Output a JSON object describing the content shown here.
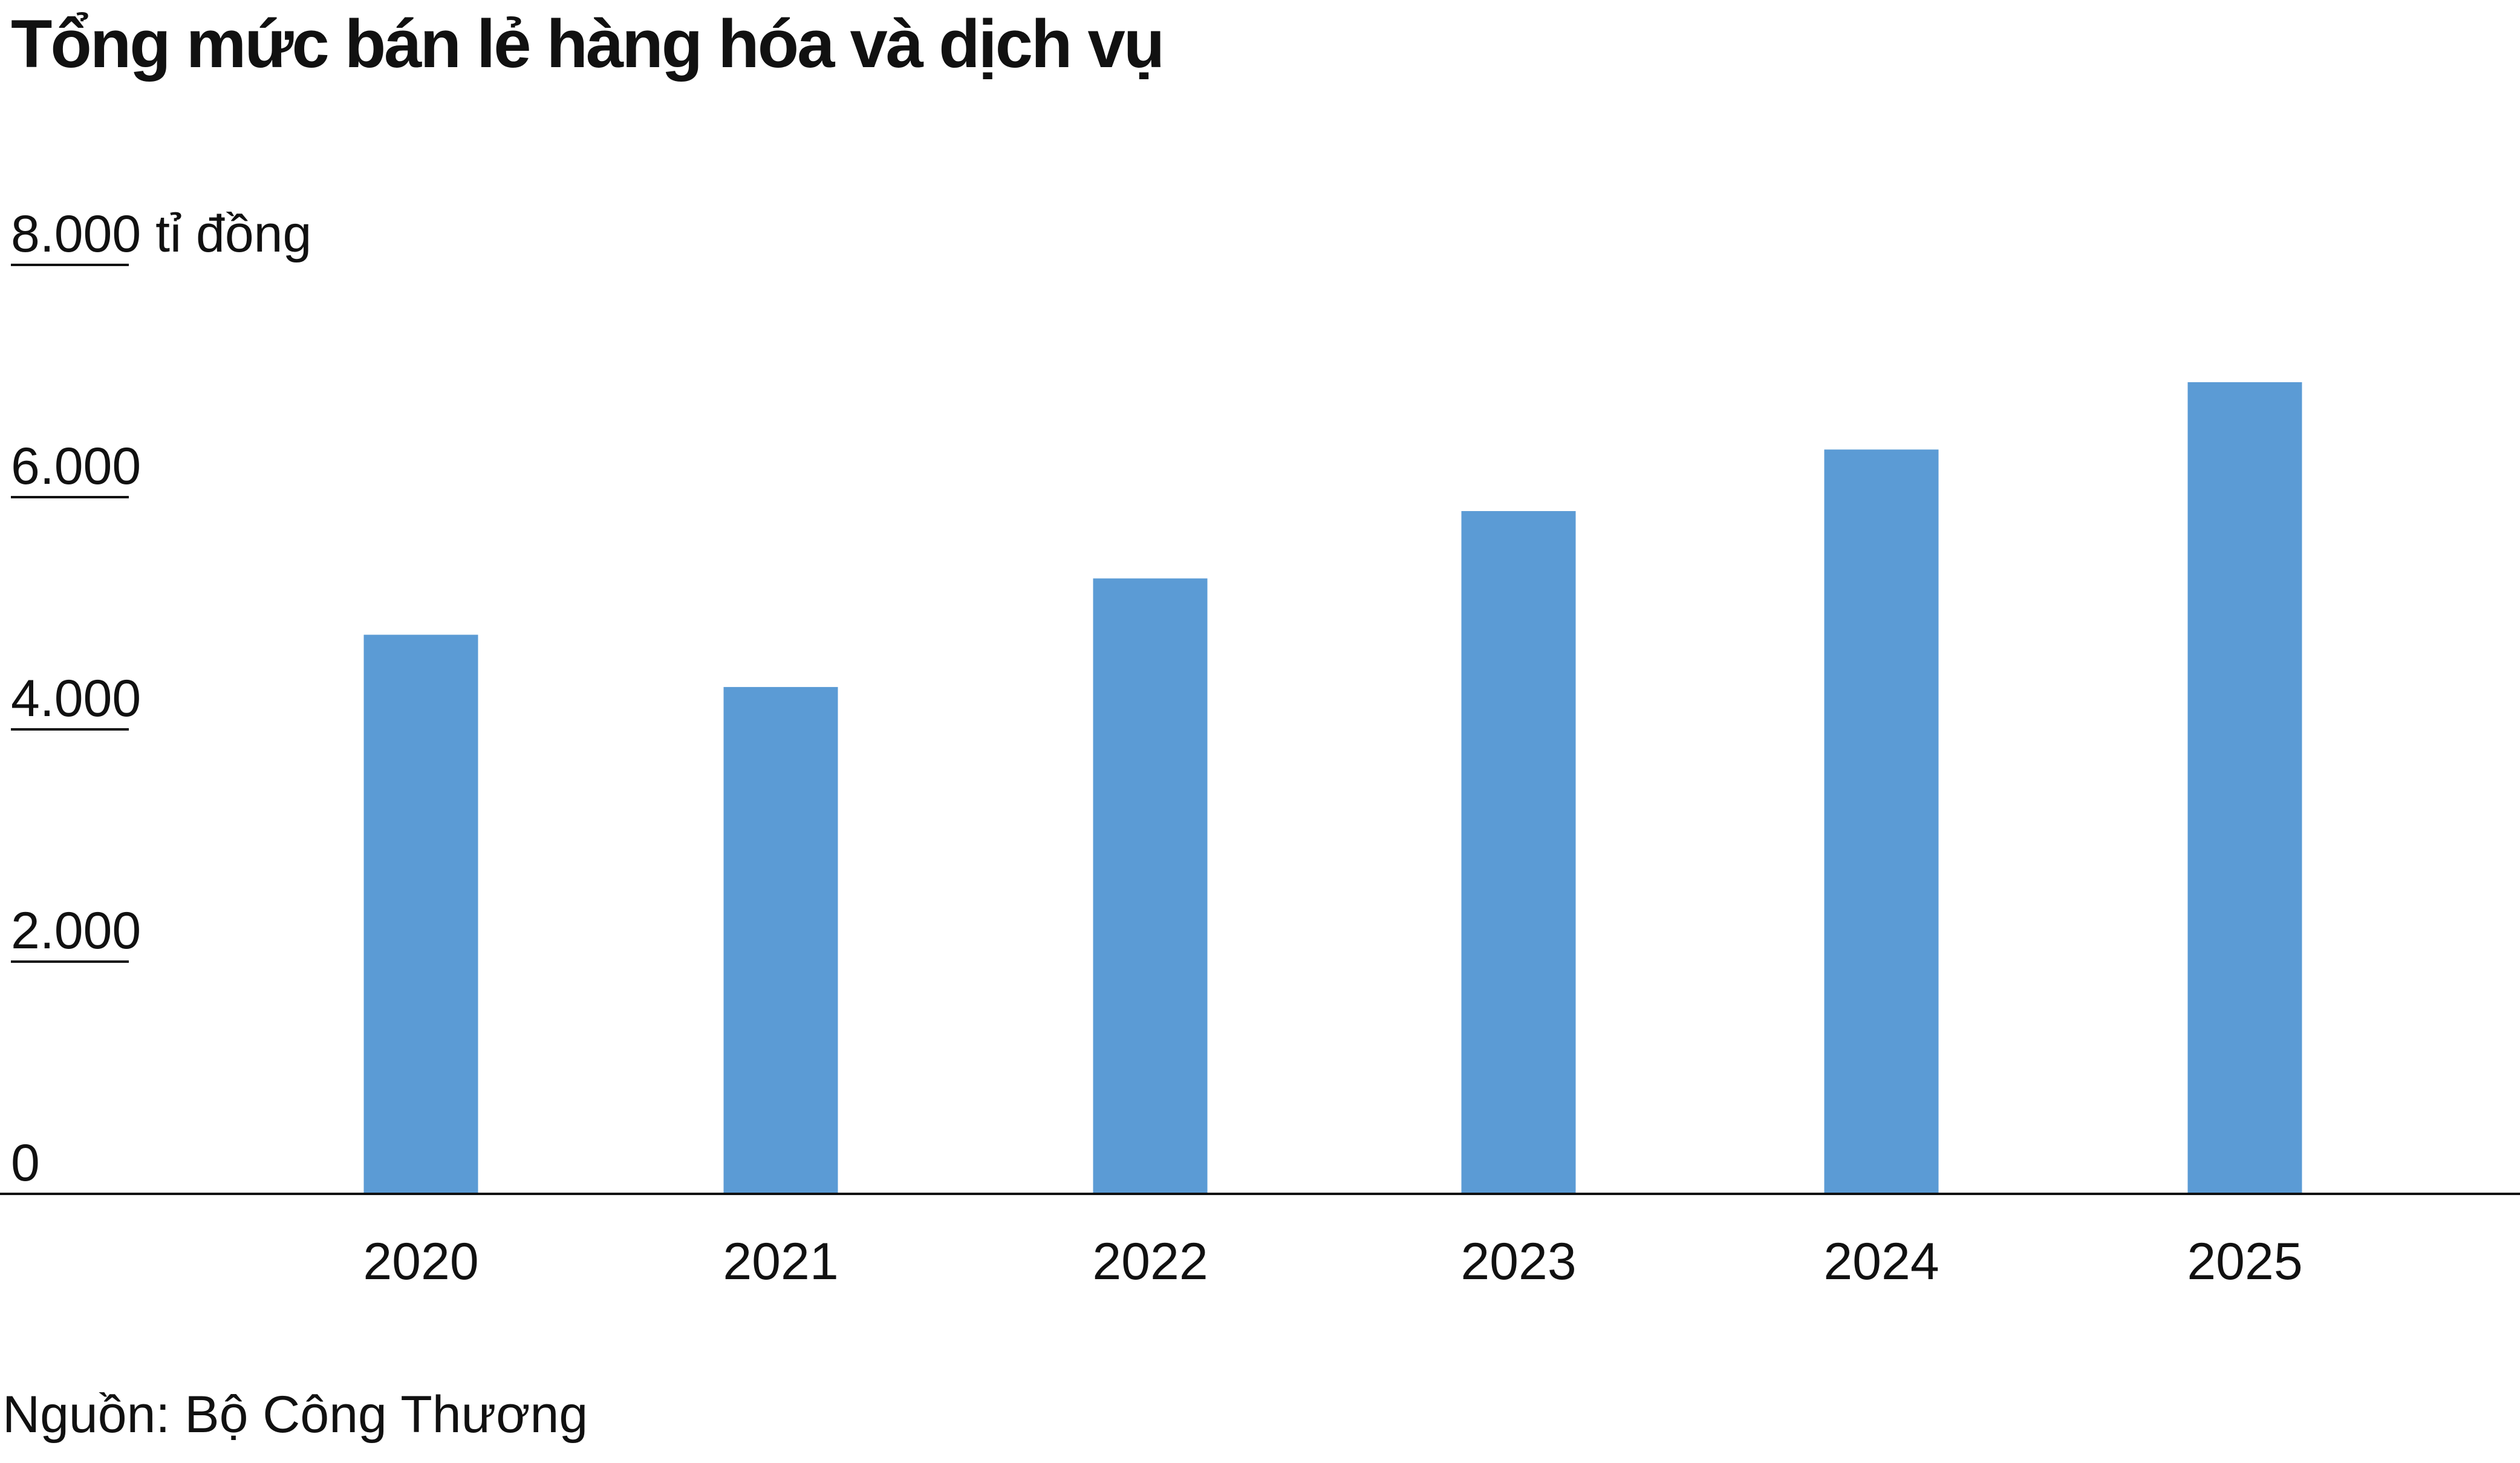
{
  "title": "Tổng mức bán lẻ hàng hóa và dịch vụ",
  "source": "Nguồn: Bộ Công Thương",
  "chart_data": {
    "type": "bar",
    "title": "Tổng mức bán lẻ hàng hóa và dịch vụ",
    "unit_label": "tỉ đồng",
    "categories": [
      "2020",
      "2021",
      "2022",
      "2023",
      "2024",
      "2025"
    ],
    "values": [
      4815,
      4365,
      5300,
      5880,
      6410,
      6990
    ],
    "ylim": [
      0,
      8000
    ],
    "yticks": [
      0,
      2000,
      4000,
      6000,
      8000
    ],
    "ytick_labels": [
      "0",
      "2.000",
      "4.000",
      "6.000",
      "8.000 tỉ đồng"
    ],
    "grid": false,
    "legend": "none",
    "bar_color": "#5b9bd5"
  }
}
